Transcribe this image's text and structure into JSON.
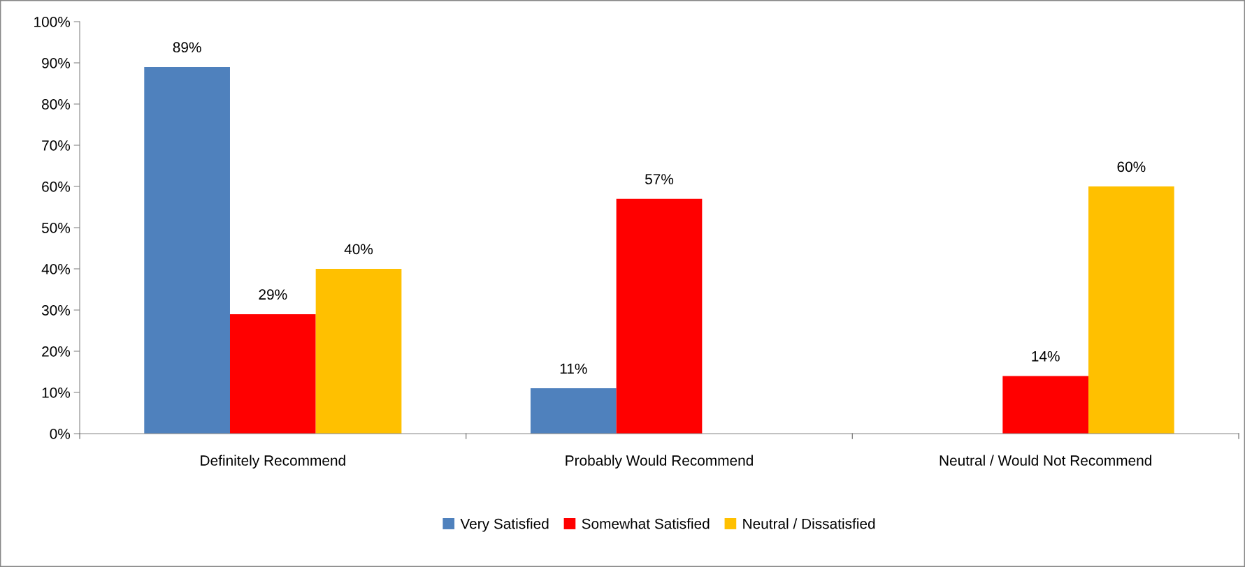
{
  "chart_data": {
    "type": "bar",
    "categories": [
      "Definitely Recommend",
      "Probably Would Recommend",
      "Neutral / Would Not Recommend"
    ],
    "series": [
      {
        "name": "Very Satisfied",
        "color": "#4f81bd",
        "values": [
          89,
          11,
          null
        ],
        "value_labels": [
          "89%",
          "11%",
          null
        ]
      },
      {
        "name": "Somewhat Satisfied",
        "color": "#ff0000",
        "values": [
          29,
          57,
          14
        ],
        "value_labels": [
          "29%",
          "57%",
          "14%"
        ]
      },
      {
        "name": "Neutral / Dissatisfied",
        "color": "#ffc000",
        "values": [
          40,
          null,
          60
        ],
        "value_labels": [
          "40%",
          null,
          "60%"
        ]
      }
    ],
    "ylim": [
      0,
      100
    ],
    "yticks": [
      {
        "value": 0,
        "label": "0%"
      },
      {
        "value": 10,
        "label": "10%"
      },
      {
        "value": 20,
        "label": "20%"
      },
      {
        "value": 30,
        "label": "30%"
      },
      {
        "value": 40,
        "label": "40%"
      },
      {
        "value": 50,
        "label": "50%"
      },
      {
        "value": 60,
        "label": "60%"
      },
      {
        "value": 70,
        "label": "70%"
      },
      {
        "value": 80,
        "label": "80%"
      },
      {
        "value": 90,
        "label": "90%"
      },
      {
        "value": 100,
        "label": "100%"
      }
    ],
    "grid": false,
    "legend": "bottom"
  }
}
